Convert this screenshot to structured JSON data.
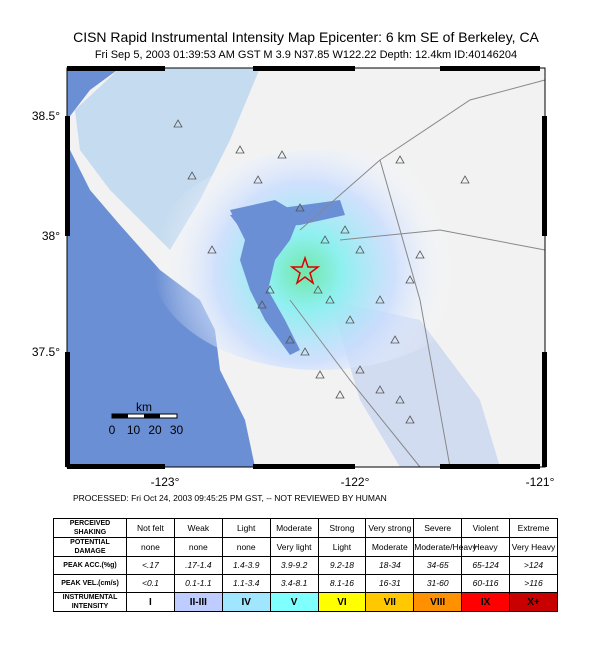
{
  "header": {
    "title": "CISN Rapid Instrumental Intensity Map Epicenter:    6 km SE  of Berkeley, CA",
    "subtitle": "Fri Sep  5, 2003 01:39:53 AM GST   M 3.9   N37.85 W122.22   Depth: 12.4km   ID:40146204"
  },
  "map": {
    "lat_labels": [
      "38.5°",
      "38°",
      "37.5°"
    ],
    "lon_labels": [
      "-123°",
      "-122°",
      "-121°"
    ],
    "scale": {
      "unit": "km",
      "labels": [
        "0",
        "10",
        "20",
        "30"
      ]
    }
  },
  "processed": "PROCESSED: Fri Oct 24, 2003 09:45:25 PM GST, -- NOT REVIEWED BY HUMAN",
  "table": {
    "rows": [
      [
        "PERCEIVED SHAKING",
        "Not felt",
        "Weak",
        "Light",
        "Moderate",
        "Strong",
        "Very strong",
        "Severe",
        "Violent",
        "Extreme"
      ],
      [
        "POTENTIAL DAMAGE",
        "none",
        "none",
        "none",
        "Very light",
        "Light",
        "Moderate",
        "Moderate/Heavy",
        "Heavy",
        "Very Heavy"
      ],
      [
        "PEAK ACC.(%g)",
        "<.17",
        ".17-1.4",
        "1.4-3.9",
        "3.9-9.2",
        "9.2-18",
        "18-34",
        "34-65",
        "65-124",
        ">124"
      ],
      [
        "PEAK VEL.(cm/s)",
        "<0.1",
        "0.1-1.1",
        "1.1-3.4",
        "3.4-8.1",
        "8.1-16",
        "16-31",
        "31-60",
        "60-116",
        ">116"
      ],
      [
        "INSTRUMENTAL INTENSITY",
        "I",
        "II-III",
        "IV",
        "V",
        "VI",
        "VII",
        "VIII",
        "IX",
        "X+"
      ]
    ]
  }
}
